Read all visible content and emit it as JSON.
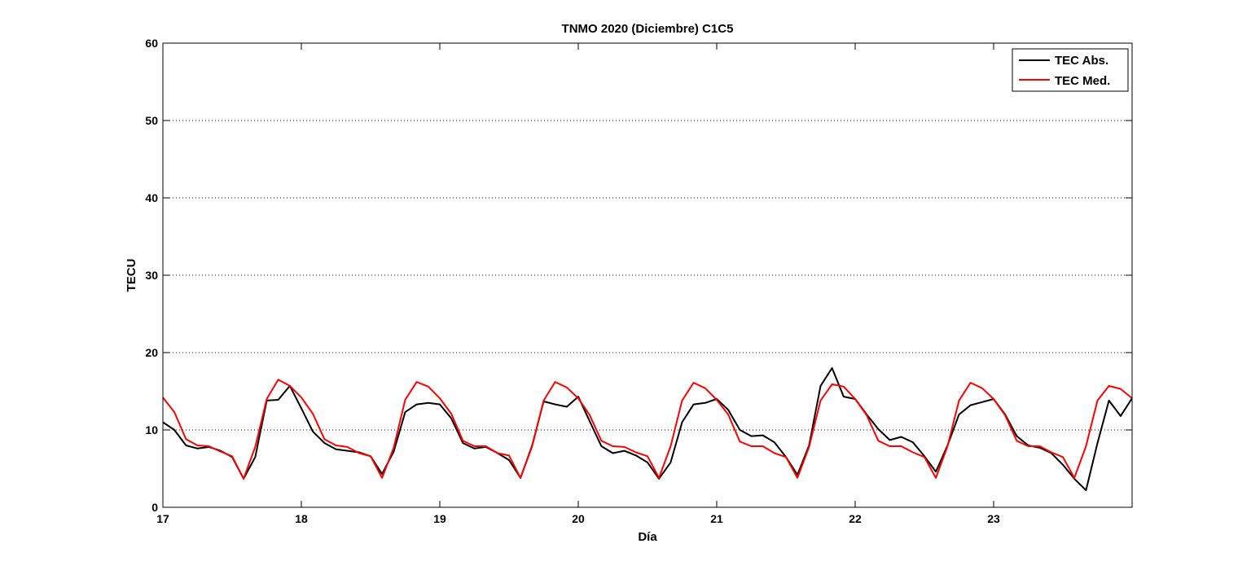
{
  "chart_data": {
    "type": "line",
    "title": "TNMO 2020 (Diciembre) C1C5",
    "xlabel": "Día",
    "ylabel": "TECU",
    "xlim": [
      17,
      24
    ],
    "ylim": [
      0,
      60
    ],
    "xticks": [
      17,
      18,
      19,
      20,
      21,
      22,
      23
    ],
    "yticks": [
      0,
      10,
      20,
      30,
      40,
      50,
      60
    ],
    "grid": "y-dotted",
    "legend_position": "top-right",
    "series": [
      {
        "name": "TEC Abs.",
        "color": "#000000",
        "x": [
          17.0,
          17.083,
          17.167,
          17.25,
          17.333,
          17.417,
          17.5,
          17.583,
          17.667,
          17.75,
          17.833,
          17.917,
          18.0,
          18.083,
          18.167,
          18.25,
          18.333,
          18.417,
          18.5,
          18.583,
          18.667,
          18.75,
          18.833,
          18.917,
          19.0,
          19.083,
          19.167,
          19.25,
          19.333,
          19.417,
          19.5,
          19.583,
          19.667,
          19.75,
          19.833,
          19.917,
          20.0,
          20.083,
          20.167,
          20.25,
          20.333,
          20.417,
          20.5,
          20.583,
          20.667,
          20.75,
          20.833,
          20.917,
          21.0,
          21.083,
          21.167,
          21.25,
          21.333,
          21.417,
          21.5,
          21.583,
          21.667,
          21.75,
          21.833,
          21.917,
          22.0,
          22.083,
          22.167,
          22.25,
          22.333,
          22.417,
          22.5,
          22.583,
          22.667,
          22.75,
          22.833,
          22.917,
          23.0,
          23.083,
          23.167,
          23.25,
          23.333,
          23.417,
          23.5,
          23.583,
          23.667,
          23.75,
          23.833,
          23.917,
          24.0
        ],
        "values": [
          11.0,
          10.0,
          8.0,
          7.6,
          7.8,
          7.3,
          6.5,
          3.7,
          6.5,
          13.8,
          13.9,
          15.7,
          12.8,
          9.8,
          8.3,
          7.5,
          7.3,
          7.1,
          6.6,
          4.3,
          7.2,
          12.3,
          13.3,
          13.5,
          13.3,
          11.5,
          8.3,
          7.6,
          7.8,
          7.0,
          6.1,
          3.8,
          8.0,
          13.7,
          13.3,
          13.0,
          14.3,
          11.1,
          7.9,
          7.0,
          7.3,
          6.7,
          5.8,
          3.7,
          5.8,
          11.0,
          13.3,
          13.5,
          14.0,
          12.6,
          10.0,
          9.2,
          9.3,
          8.4,
          6.5,
          4.2,
          8.0,
          15.7,
          18.0,
          14.3,
          14.0,
          12.0,
          10.1,
          8.7,
          9.1,
          8.4,
          6.6,
          4.6,
          8.0,
          12.0,
          13.2,
          13.6,
          14.0,
          12.0,
          9.2,
          8.0,
          7.7,
          7.0,
          5.5,
          3.7,
          2.2,
          8.3,
          13.8,
          11.8,
          14.1
        ]
      },
      {
        "name": "TEC Med.",
        "color": "#ff0000",
        "x": [
          17.0,
          17.083,
          17.167,
          17.25,
          17.333,
          17.417,
          17.5,
          17.583,
          17.667,
          17.75,
          17.833,
          17.917,
          18.0,
          18.083,
          18.167,
          18.25,
          18.333,
          18.417,
          18.5,
          18.583,
          18.667,
          18.75,
          18.833,
          18.917,
          19.0,
          19.083,
          19.167,
          19.25,
          19.333,
          19.417,
          19.5,
          19.583,
          19.667,
          19.75,
          19.833,
          19.917,
          20.0,
          20.083,
          20.167,
          20.25,
          20.333,
          20.417,
          20.5,
          20.583,
          20.667,
          20.75,
          20.833,
          20.917,
          21.0,
          21.083,
          21.167,
          21.25,
          21.333,
          21.417,
          21.5,
          21.583,
          21.667,
          21.75,
          21.833,
          21.917,
          22.0,
          22.083,
          22.167,
          22.25,
          22.333,
          22.417,
          22.5,
          22.583,
          22.667,
          22.75,
          22.833,
          22.917,
          23.0,
          23.083,
          23.167,
          23.25,
          23.333,
          23.417,
          23.5,
          23.583,
          23.667,
          23.75,
          23.833,
          23.917,
          24.0
        ],
        "values": [
          14.2,
          12.3,
          8.8,
          8.0,
          7.9,
          7.2,
          6.6,
          3.7,
          7.8,
          14.0,
          16.5,
          15.7,
          14.2,
          12.1,
          8.8,
          8.0,
          7.8,
          7.0,
          6.6,
          3.8,
          7.7,
          13.9,
          16.2,
          15.6,
          14.1,
          12.1,
          8.6,
          7.9,
          7.9,
          7.0,
          6.7,
          3.8,
          7.9,
          13.8,
          16.2,
          15.5,
          14.1,
          11.9,
          8.6,
          7.9,
          7.8,
          7.1,
          6.6,
          3.8,
          7.9,
          13.8,
          16.1,
          15.4,
          13.9,
          12.0,
          8.5,
          7.9,
          7.9,
          7.0,
          6.5,
          3.8,
          7.8,
          13.8,
          15.9,
          15.6,
          14.0,
          11.9,
          8.6,
          7.9,
          7.9,
          7.1,
          6.5,
          3.8,
          7.9,
          13.8,
          16.1,
          15.4,
          14.0,
          11.9,
          8.6,
          7.9,
          7.9,
          7.1,
          6.5,
          3.8,
          7.9,
          13.8,
          15.7,
          15.3,
          14.1
        ]
      }
    ]
  }
}
